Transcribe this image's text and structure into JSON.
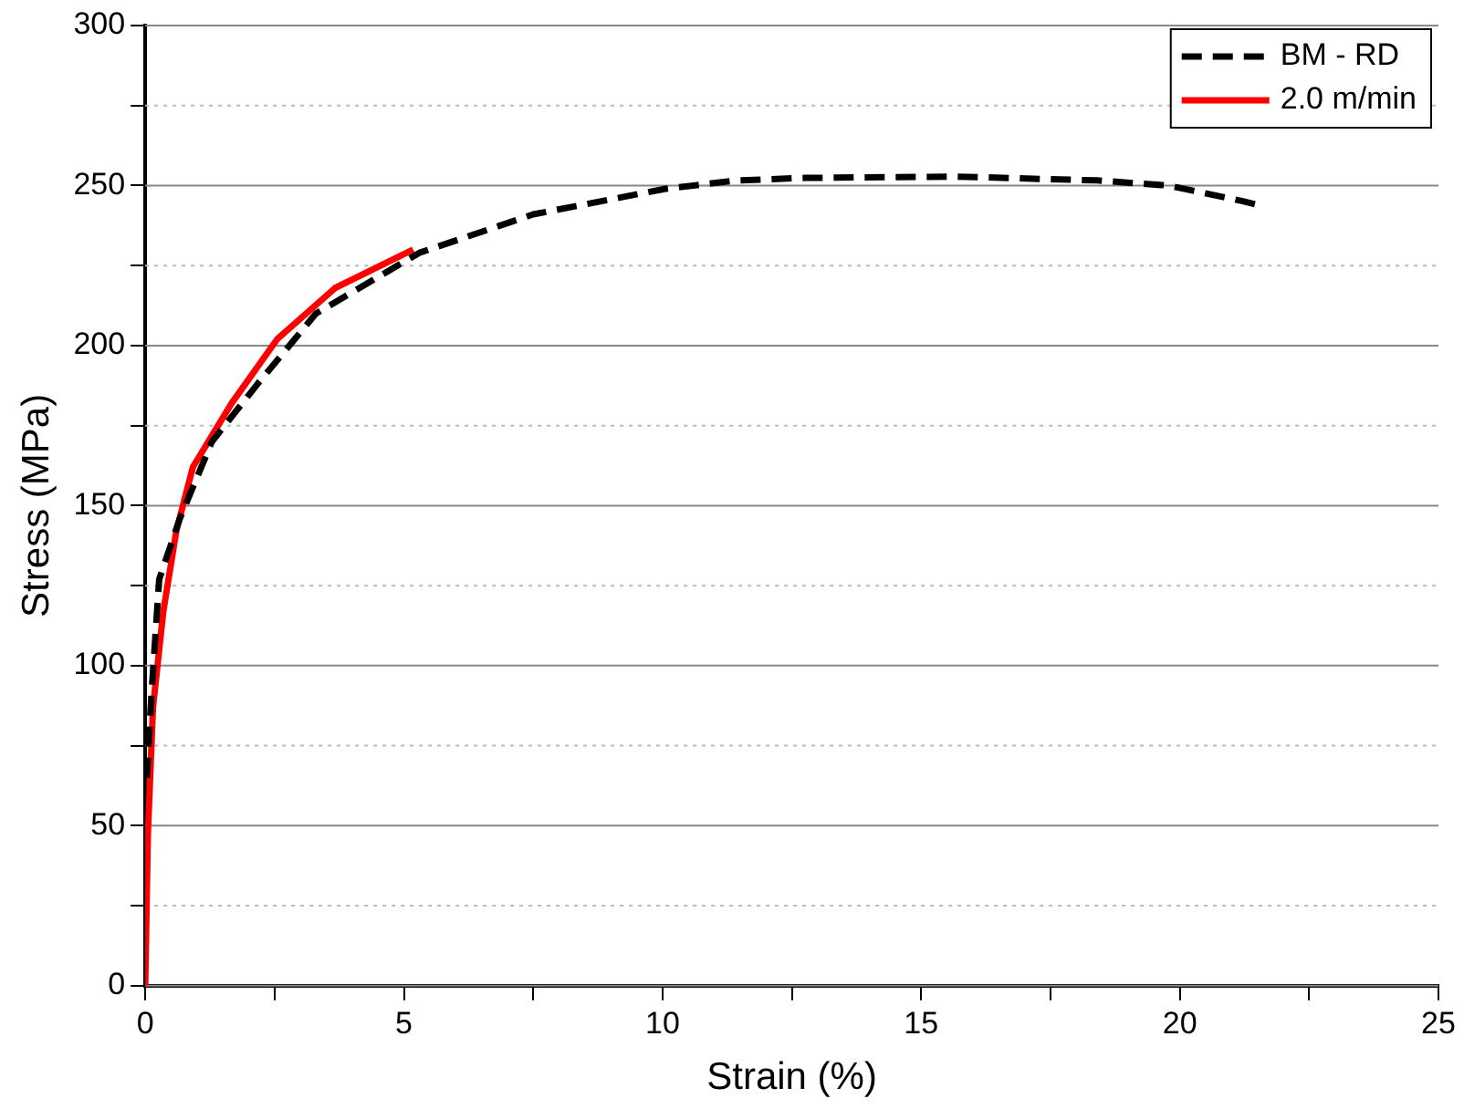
{
  "chart_data": {
    "type": "line",
    "xlabel": "Strain (%)",
    "ylabel": "Stress (MPa)",
    "xlim": [
      0,
      25
    ],
    "xticks": [
      0,
      {
        "value": 2.5,
        "label": null
      },
      5,
      {
        "value": 7.5,
        "label": null
      },
      10,
      {
        "value": 12.5,
        "label": null
      },
      15,
      {
        "value": 17.5,
        "label": null
      },
      20,
      {
        "value": 22.5,
        "label": null
      },
      25
    ],
    "ylim": [
      0,
      300
    ],
    "yticks": [
      0,
      {
        "value": 25,
        "label": null
      },
      50,
      {
        "value": 75,
        "label": null
      },
      100,
      {
        "value": 125,
        "label": null
      },
      150,
      {
        "value": 175,
        "label": null
      },
      200,
      {
        "value": 225,
        "label": null
      },
      250,
      {
        "value": 275,
        "label": null
      },
      300
    ],
    "grid": "y",
    "legend": "top right",
    "marker": "none",
    "series": [
      {
        "name": "BM - RD",
        "color": "#000000",
        "line_style": "dashed",
        "x": [
          0.03,
          0.12,
          0.27,
          0.67,
          1.29,
          2.17,
          3.3,
          5.3,
          7.5,
          10.06,
          11.44,
          12.76,
          15.7,
          18.4,
          19.78,
          21.2,
          21.5
        ],
        "values": [
          65,
          91,
          127,
          146,
          170,
          188,
          210,
          229,
          241,
          249,
          251.6,
          252.4,
          252.8,
          251.6,
          250,
          245.2,
          244
        ]
      },
      {
        "name": "2.0 m/min",
        "color": "#ff0000",
        "line_style": "solid",
        "x": [
          0,
          0.05,
          0.15,
          0.35,
          0.6,
          0.92,
          1.67,
          2.55,
          3.67,
          5.18
        ],
        "values": [
          0,
          47,
          87,
          117,
          142,
          162,
          182,
          202,
          218,
          230
        ]
      }
    ]
  }
}
